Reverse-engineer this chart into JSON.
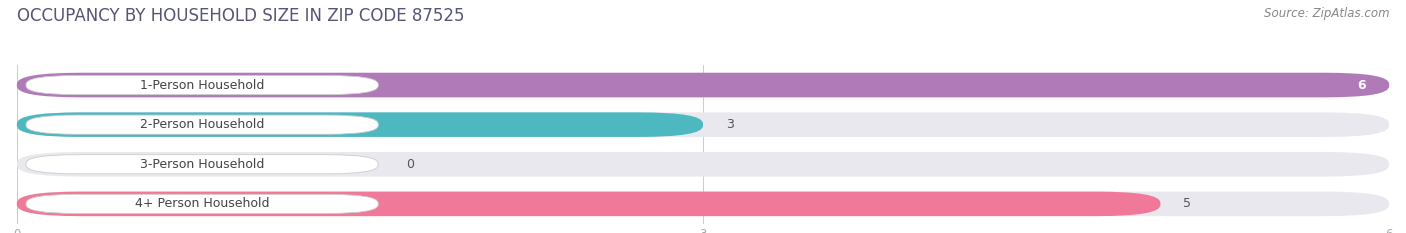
{
  "title": "OCCUPANCY BY HOUSEHOLD SIZE IN ZIP CODE 87525",
  "source": "Source: ZipAtlas.com",
  "categories": [
    "1-Person Household",
    "2-Person Household",
    "3-Person Household",
    "4+ Person Household"
  ],
  "values": [
    6,
    3,
    0,
    5
  ],
  "bar_colors": [
    "#b07ab8",
    "#4db8c0",
    "#9898cc",
    "#f07898"
  ],
  "xlim": [
    0,
    6
  ],
  "xticks": [
    0,
    3,
    6
  ],
  "background_color": "#ffffff",
  "bar_bg_color": "#e8e8ee",
  "label_box_color": "#ffffff",
  "title_fontsize": 12,
  "source_fontsize": 8.5,
  "label_fontsize": 9,
  "value_fontsize": 9,
  "title_color": "#555577",
  "label_color": "#444444",
  "value_color": "#555555",
  "tick_color": "#aaaaaa",
  "grid_color": "#cccccc",
  "source_color": "#888888"
}
